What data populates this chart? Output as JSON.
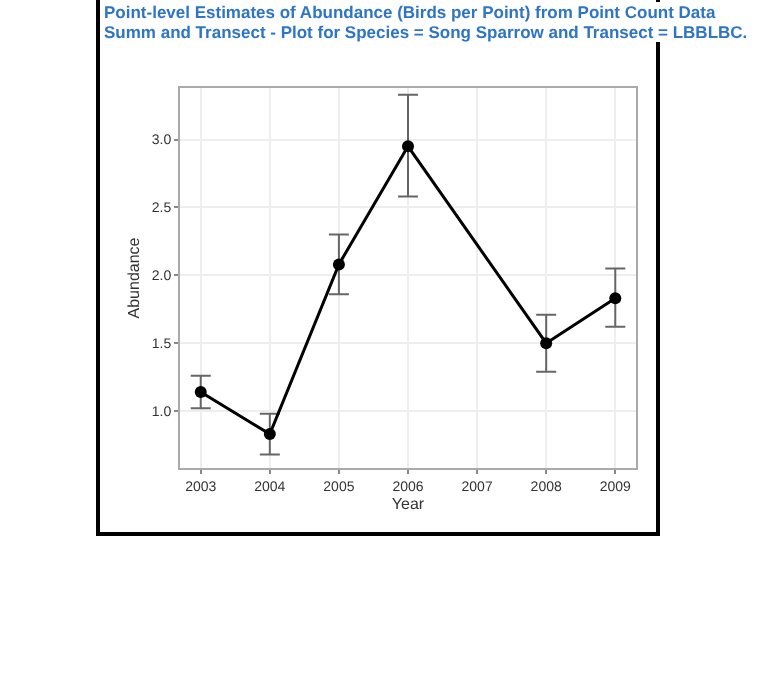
{
  "chart_data": {
    "type": "line",
    "title": "Point-level Estimates of Abundance (Birds per Point) from Point Count Data Summ and Transect - Plot for Species = Song Sparrow and Transect = LBBLBC.",
    "xlabel": "Year",
    "ylabel": "Abundance",
    "x": [
      2003,
      2004,
      2005,
      2006,
      2008,
      2009
    ],
    "series": [
      {
        "color": "#000000",
        "values": [
          1.14,
          0.83,
          2.08,
          2.95,
          1.5,
          1.83
        ],
        "errors": [
          [
            1.02,
            1.26
          ],
          [
            0.68,
            0.98
          ],
          [
            1.86,
            2.3
          ],
          [
            2.58,
            3.33
          ],
          [
            1.29,
            1.71
          ],
          [
            1.62,
            2.05
          ]
        ]
      }
    ],
    "xlim": [
      2002.7,
      2009.3
    ],
    "xticks": [
      2003,
      2004,
      2005,
      2006,
      2007,
      2008,
      2009
    ],
    "ylim": [
      0.58,
      3.38
    ],
    "yticks": [
      {
        "value": 1,
        "label": "1.0"
      },
      {
        "value": 1.5,
        "label": "1.5"
      },
      {
        "value": 2,
        "label": "2.0"
      },
      {
        "value": 2.5,
        "label": "2.5"
      },
      {
        "value": 3,
        "label": "3.0"
      }
    ],
    "grid": true,
    "marker": "circle",
    "line_style": "solid"
  }
}
